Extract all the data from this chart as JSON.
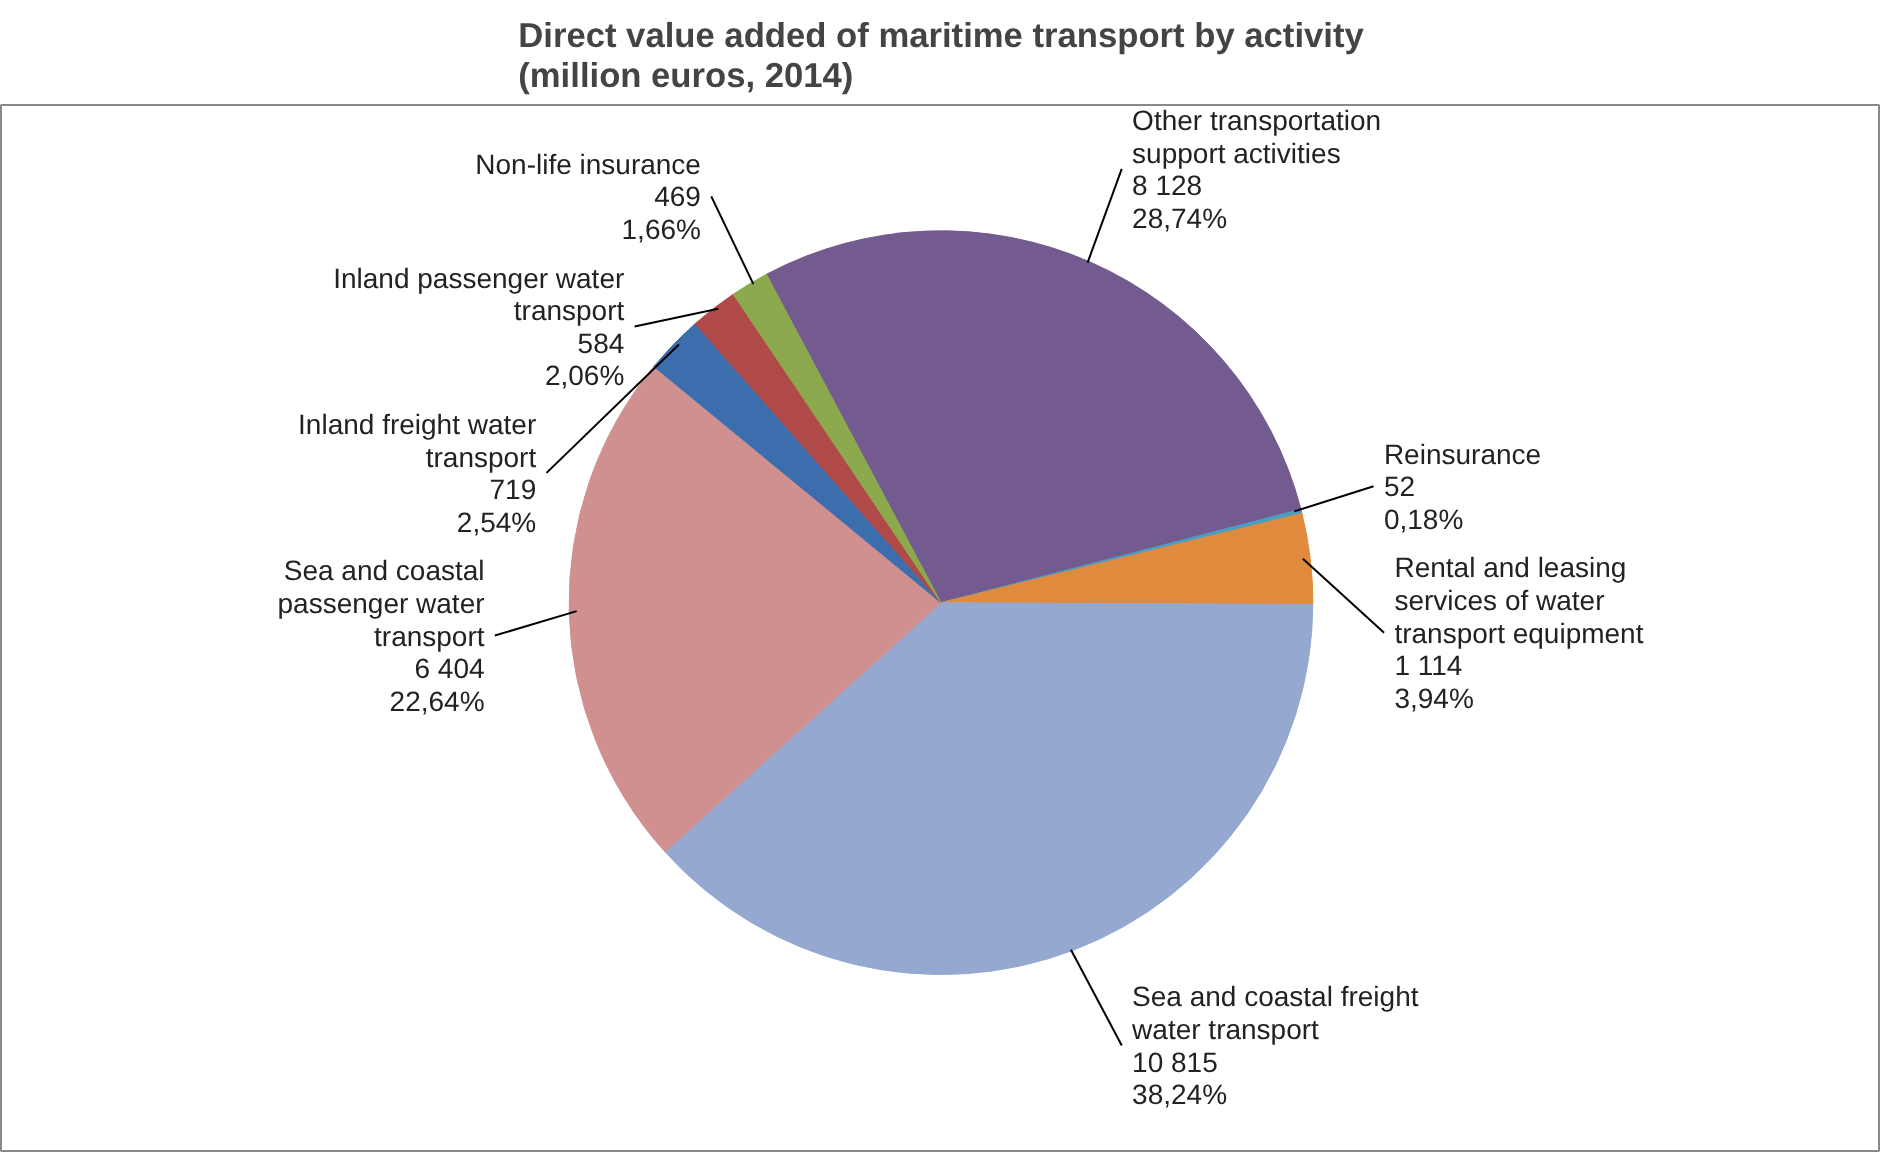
{
  "chart_data": {
    "type": "pie",
    "title": "Direct value added of maritime transport by activity\n(million euros, 2014)",
    "categories": [
      "Other transportation support activities",
      "Reinsurance",
      "Rental and leasing services of water transport equipment",
      "Sea and coastal freight water transport",
      "Sea and coastal passenger water transport",
      "Inland freight water transport",
      "Inland passenger water transport",
      "Non-life insurance"
    ],
    "values": [
      8128,
      52,
      1114,
      10815,
      6404,
      719,
      584,
      469
    ],
    "value_labels": [
      "8 128\n28,74%",
      "52\n0,18%",
      "1 114\n3,94%",
      "10 815\n38,24%",
      "6 404\n22,64%",
      "719\n2,54%",
      "584\n2,06%",
      "469\n1,66%"
    ],
    "colors": [
      "#735a8f",
      "#4a9ec0",
      "#e08a3e",
      "#95a9d0",
      "#d09090",
      "#3c6eae",
      "#b04a48",
      "#8ca94e"
    ]
  }
}
